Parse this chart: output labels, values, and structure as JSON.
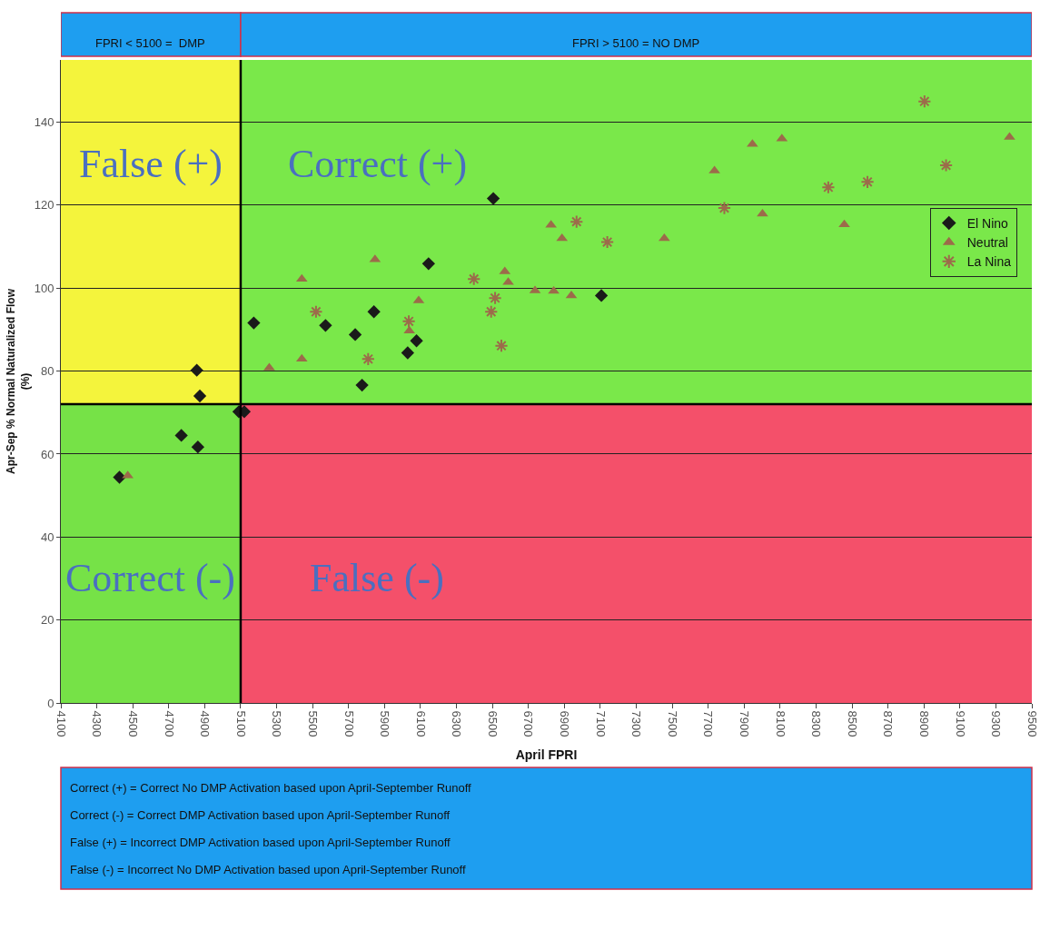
{
  "chart_data": {
    "type": "scatter",
    "xlabel": "April FPRI",
    "ylabel": "Apr-Sep % Normal Naturalized Flow\n(%)",
    "series": [
      {
        "name": "El Nino",
        "color": "#1a1a1a",
        "marker": "diamond",
        "x": [
          4426,
          4770,
          4856,
          4862,
          4873,
          5090,
          5120,
          5173,
          5572,
          5737,
          5775,
          5841,
          6029,
          6078,
          6145,
          6505,
          7106
        ],
        "values": [
          54.4,
          64.5,
          80.2,
          61.7,
          74,
          70.2,
          70.2,
          91.6,
          91,
          88.8,
          76.6,
          94.3,
          84.4,
          87.3,
          105.9,
          121.6,
          98.2
        ]
      },
      {
        "name": "Neutral",
        "color": "#9c6b4a",
        "marker": "triangle",
        "x": [
          4472,
          5259,
          5440,
          5440,
          5847,
          6038,
          6090,
          6569,
          6588,
          6737,
          6826,
          6841,
          6887,
          6939,
          7456,
          7735,
          7946,
          8002,
          8110,
          8457,
          9376
        ],
        "values": [
          54.8,
          80.8,
          82.9,
          102.2,
          106.9,
          89.7,
          97,
          104,
          101.4,
          99.4,
          115.2,
          99.3,
          112,
          98.2,
          112,
          128.3,
          134.7,
          117.9,
          136,
          115.3,
          136.4
        ]
      },
      {
        "name": "La Nina",
        "color": "#9c6b4a",
        "marker": "cross",
        "x": [
          5519,
          5809,
          6035,
          6397,
          6493,
          6515,
          6550,
          6968,
          7139,
          7790,
          8368,
          8586,
          8903,
          9023
        ],
        "values": [
          94.3,
          82.9,
          92,
          102.2,
          94.3,
          97.6,
          86.1,
          116,
          111.1,
          119.3,
          124.3,
          125.6,
          145,
          129.6
        ]
      }
    ],
    "xlim": [
      4100,
      9500
    ],
    "xticks": [
      4100,
      4300,
      4500,
      4700,
      4900,
      5100,
      5300,
      5500,
      5700,
      5900,
      6100,
      6300,
      6500,
      6700,
      6900,
      7100,
      7300,
      7500,
      7700,
      7900,
      8100,
      8300,
      8500,
      8700,
      8900,
      9100,
      9300,
      9500
    ],
    "ylim": [
      0,
      155
    ],
    "yticks": [
      0,
      20,
      40,
      60,
      80,
      100,
      120,
      140
    ],
    "grid": "y",
    "legend": "right",
    "bands": [
      {
        "axis": "x",
        "from": 4100,
        "to": 5100,
        "color": "#f4f43c"
      },
      {
        "axis": "y",
        "from": 72,
        "to": 155,
        "color": "#7ae84a"
      },
      {
        "axis": "y",
        "from": 0,
        "to": 72,
        "color": "#f4506a"
      }
    ],
    "ref_lines": [
      {
        "axis": "x",
        "value": 5100,
        "color": "#000000"
      },
      {
        "axis": "y",
        "value": 72,
        "color": "#000000"
      }
    ],
    "annotations": [
      "FPRI < 5100 =  DMP",
      "FPRI > 5100 = NO DMP",
      "False (+)",
      "Correct (+)",
      "Correct (-)",
      "False (-)",
      "Correct (+) = Correct No DMP Activation based upon April-September Runoff",
      "Correct (-) = Correct DMP Activation based upon April-September Runoff",
      "False (+) = Incorrect DMP Activation based upon April-September Runoff",
      "False (-) = Incorrect No DMP Activation based upon April-September Runoff"
    ]
  }
}
